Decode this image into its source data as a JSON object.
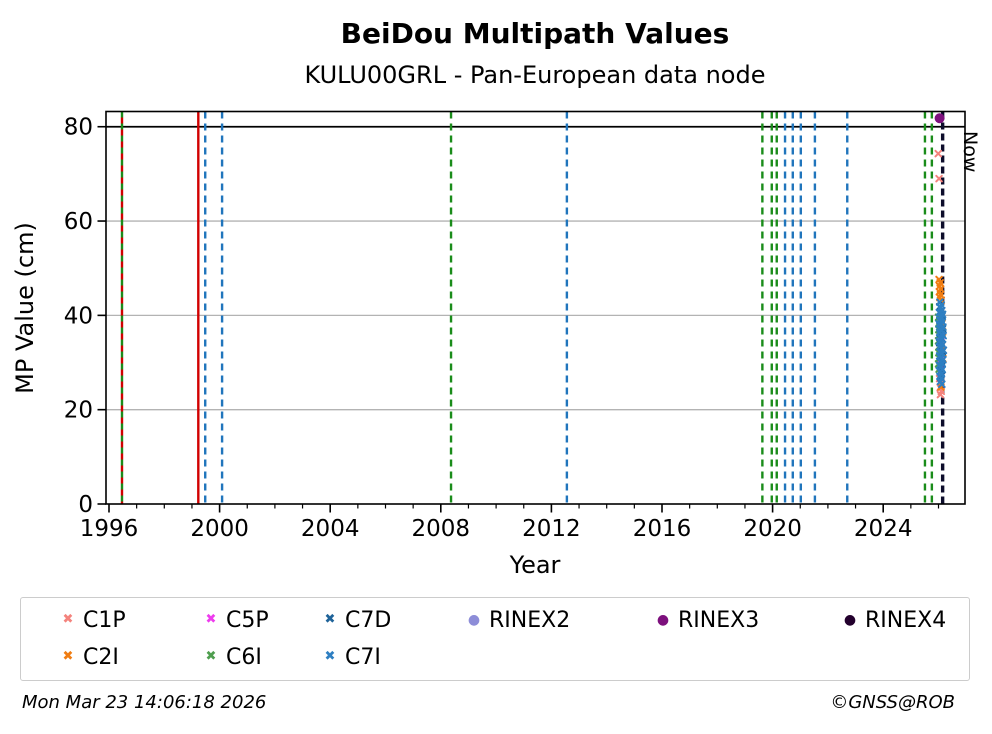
{
  "header": {
    "title": "BeiDou Multipath Values",
    "subtitle": "KULU00GRL - Pan-European data node"
  },
  "footer": {
    "timestamp": "Mon Mar 23 14:06:18 2026",
    "copyright": "©GNSS@ROB"
  },
  "legend": {
    "entries": [
      {
        "label": "C1P",
        "marker": "x",
        "color": "#f4837d",
        "row": 0,
        "col": 0
      },
      {
        "label": "C5P",
        "marker": "x",
        "color": "#ee3cee",
        "row": 0,
        "col": 1
      },
      {
        "label": "C7D",
        "marker": "x",
        "color": "#1f6399",
        "row": 0,
        "col": 2
      },
      {
        "label": "RINEX2",
        "marker": "circle",
        "color": "#8d8dd8",
        "row": 0,
        "col": 3
      },
      {
        "label": "RINEX3",
        "marker": "circle",
        "color": "#7d107d",
        "row": 0,
        "col": 4
      },
      {
        "label": "RINEX4",
        "marker": "circle",
        "color": "#23002d",
        "row": 0,
        "col": 5
      },
      {
        "label": "C2I",
        "marker": "x",
        "color": "#f07d12",
        "row": 1,
        "col": 0
      },
      {
        "label": "C6I",
        "marker": "x",
        "color": "#4f9e4f",
        "row": 1,
        "col": 1
      },
      {
        "label": "C7I",
        "marker": "x",
        "color": "#2e7fc2",
        "row": 1,
        "col": 2
      }
    ]
  },
  "chart_data": {
    "type": "scatter",
    "title": "BeiDou Multipath Values",
    "subtitle": "KULU00GRL - Pan-European data node",
    "xlabel": "Year",
    "ylabel": "MP Value (cm)",
    "xlim": [
      1995.9,
      2026.95
    ],
    "ylim": [
      0,
      83.3
    ],
    "xticks": [
      1996,
      2000,
      2004,
      2008,
      2012,
      2016,
      2020,
      2024
    ],
    "yticks": [
      0,
      20,
      40,
      60,
      80
    ],
    "grid": "horizontal gray lines at y=20,40,60",
    "threshold_line": {
      "y": 80,
      "color": "#000000",
      "style": "solid"
    },
    "now_line": {
      "x": 2026.15,
      "label": "Now",
      "color": "#0d0d2b",
      "style": "dashed"
    },
    "event_lines": [
      {
        "x": 1996.47,
        "color": "#1a8c1a",
        "style": "dashed",
        "interleaved": true,
        "offset": 0
      },
      {
        "x": 1996.47,
        "color": "#d10000",
        "style": "dashed",
        "interleaved": true,
        "offset": 6
      },
      {
        "x": 1999.23,
        "color": "#d10000",
        "style": "solid"
      },
      {
        "x": 1999.48,
        "color": "#2075bc",
        "style": "dashed"
      },
      {
        "x": 2000.09,
        "color": "#2075bc",
        "style": "dashed"
      },
      {
        "x": 2008.37,
        "color": "#1a8c1a",
        "style": "dashed"
      },
      {
        "x": 2012.56,
        "color": "#2075bc",
        "style": "dashed"
      },
      {
        "x": 2019.63,
        "color": "#1a8c1a",
        "style": "dashed"
      },
      {
        "x": 2019.97,
        "color": "#1a8c1a",
        "style": "dashed"
      },
      {
        "x": 2020.15,
        "color": "#1a8c1a",
        "style": "dashed"
      },
      {
        "x": 2020.45,
        "color": "#2075bc",
        "style": "dashed"
      },
      {
        "x": 2020.73,
        "color": "#2075bc",
        "style": "dashed"
      },
      {
        "x": 2021.02,
        "color": "#2075bc",
        "style": "dashed"
      },
      {
        "x": 2021.53,
        "color": "#2075bc",
        "style": "dashed"
      },
      {
        "x": 2022.7,
        "color": "#2075bc",
        "style": "dashed"
      },
      {
        "x": 2025.51,
        "color": "#1a8c1a",
        "style": "dashed"
      },
      {
        "x": 2025.76,
        "color": "#1a8c1a",
        "style": "dashed"
      }
    ],
    "series": [
      {
        "name": "RINEX3",
        "marker": "circle",
        "color": "#7d107d",
        "points": [
          [
            2026.04,
            81.8
          ]
        ]
      },
      {
        "name": "C1P",
        "marker": "x",
        "color": "#f4837d",
        "points": [
          [
            2025.99,
            74.3
          ],
          [
            2026.02,
            69.0
          ],
          [
            2026.05,
            28.8
          ],
          [
            2026.08,
            27.7
          ],
          [
            2026.04,
            26.6
          ],
          [
            2026.09,
            25.6
          ],
          [
            2026.06,
            24.7
          ],
          [
            2026.1,
            23.9
          ],
          [
            2026.07,
            23.2
          ]
        ]
      },
      {
        "name": "C2I",
        "marker": "x",
        "color": "#f07d12",
        "points": [
          [
            2026.02,
            47.6
          ],
          [
            2026.06,
            46.9
          ],
          [
            2026.04,
            46.2
          ],
          [
            2026.08,
            45.6
          ],
          [
            2026.03,
            45.0
          ],
          [
            2026.07,
            44.4
          ],
          [
            2026.05,
            43.8
          ],
          [
            2026.1,
            43.2
          ],
          [
            2026.13,
            38.3
          ],
          [
            2026.15,
            36.5
          ],
          [
            2026.12,
            33.6
          ],
          [
            2026.16,
            30.8
          ],
          [
            2026.09,
            24.8
          ]
        ]
      },
      {
        "name": "C5P",
        "marker": "x",
        "color": "#ee3cee",
        "points": [
          [
            2026.06,
            35.5
          ],
          [
            2026.09,
            34.3
          ],
          [
            2026.05,
            33.1
          ],
          [
            2026.08,
            31.9
          ],
          [
            2026.11,
            30.7
          ],
          [
            2026.06,
            29.5
          ],
          [
            2026.09,
            28.2
          ],
          [
            2026.07,
            27.0
          ]
        ]
      },
      {
        "name": "C6I",
        "marker": "x",
        "color": "#4f9e4f",
        "points": [
          [
            2026.0,
            39.6
          ],
          [
            2026.02,
            38.4
          ],
          [
            2026.01,
            37.0
          ],
          [
            2026.03,
            35.8
          ],
          [
            2026.0,
            34.6
          ],
          [
            2026.02,
            33.4
          ],
          [
            2026.01,
            32.1
          ],
          [
            2026.03,
            30.9
          ],
          [
            2026.0,
            29.7
          ],
          [
            2026.02,
            28.6
          ]
        ]
      },
      {
        "name": "C7D",
        "marker": "x",
        "color": "#1f6399",
        "points": [
          [
            2026.04,
            41.8
          ],
          [
            2026.09,
            40.9
          ],
          [
            2026.13,
            39.9
          ],
          [
            2026.05,
            38.9
          ],
          [
            2026.1,
            38.0
          ],
          [
            2026.15,
            37.2
          ],
          [
            2026.06,
            36.2
          ],
          [
            2026.11,
            35.2
          ],
          [
            2026.04,
            34.2
          ],
          [
            2026.09,
            33.2
          ],
          [
            2026.14,
            32.3
          ],
          [
            2026.06,
            31.3
          ],
          [
            2026.11,
            30.3
          ],
          [
            2026.05,
            29.3
          ],
          [
            2026.1,
            28.3
          ],
          [
            2026.08,
            26.9
          ]
        ]
      },
      {
        "name": "C7I",
        "marker": "x",
        "color": "#2e7fc2",
        "points": [
          [
            2026.05,
            42.8
          ],
          [
            2026.1,
            42.2
          ],
          [
            2026.08,
            41.6
          ],
          [
            2026.12,
            41.0
          ],
          [
            2026.03,
            40.6
          ],
          [
            2026.15,
            40.2
          ],
          [
            2026.07,
            39.8
          ],
          [
            2026.11,
            39.4
          ],
          [
            2026.05,
            39.0
          ],
          [
            2026.14,
            38.6
          ],
          [
            2026.02,
            38.2
          ],
          [
            2026.09,
            37.9
          ],
          [
            2026.16,
            37.5
          ],
          [
            2026.06,
            37.1
          ],
          [
            2026.12,
            36.8
          ],
          [
            2026.04,
            36.4
          ],
          [
            2026.1,
            36.0
          ],
          [
            2026.17,
            35.7
          ],
          [
            2026.07,
            35.3
          ],
          [
            2026.13,
            34.9
          ],
          [
            2026.03,
            34.5
          ],
          [
            2026.09,
            34.1
          ],
          [
            2026.15,
            33.8
          ],
          [
            2026.05,
            33.4
          ],
          [
            2026.11,
            33.0
          ],
          [
            2026.18,
            32.6
          ],
          [
            2026.06,
            32.2
          ],
          [
            2026.12,
            31.8
          ],
          [
            2026.04,
            31.4
          ],
          [
            2026.1,
            31.0
          ],
          [
            2026.16,
            30.6
          ],
          [
            2026.08,
            30.2
          ],
          [
            2026.13,
            29.8
          ],
          [
            2026.03,
            29.4
          ],
          [
            2026.09,
            29.0
          ],
          [
            2026.14,
            28.5
          ],
          [
            2026.06,
            28.1
          ],
          [
            2026.11,
            27.6
          ],
          [
            2026.05,
            27.1
          ],
          [
            2026.1,
            26.6
          ],
          [
            2026.07,
            26.0
          ],
          [
            2026.12,
            25.4
          ]
        ]
      }
    ],
    "legend_position": "below chart, 6 columns x 2 rows"
  }
}
